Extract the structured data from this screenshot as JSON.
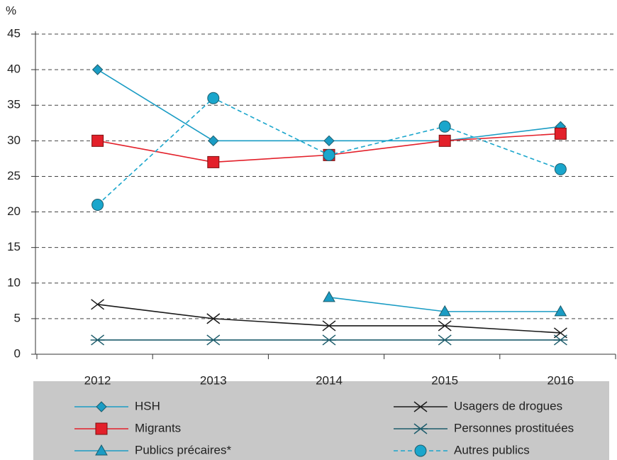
{
  "chart_data": {
    "type": "line",
    "y_label": "%",
    "categories": [
      "2012",
      "2013",
      "2014",
      "2015",
      "2016"
    ],
    "ylim": [
      0,
      45
    ],
    "yticks": [
      0,
      5,
      10,
      15,
      20,
      25,
      30,
      35,
      40,
      45
    ],
    "grid": true,
    "series": [
      {
        "name": "HSH",
        "color": "#1a9cc4",
        "marker": "diamond",
        "dashed": false,
        "values": [
          40,
          30,
          30,
          30,
          32
        ]
      },
      {
        "name": "Usagers de drogues",
        "color": "#1a1a1a",
        "marker": "x",
        "dashed": false,
        "values": [
          7,
          5,
          4,
          4,
          3
        ]
      },
      {
        "name": "Migrants",
        "color": "#e3202a",
        "marker": "square",
        "dashed": false,
        "values": [
          30,
          27,
          28,
          30,
          31
        ]
      },
      {
        "name": "Personnes prostituées",
        "color": "#1d5c6b",
        "marker": "asterisk",
        "dashed": false,
        "values": [
          2,
          2,
          2,
          2,
          2
        ]
      },
      {
        "name": "Publics précaires*",
        "color": "#1a9cc4",
        "marker": "triangle",
        "dashed": false,
        "values": [
          null,
          null,
          8,
          6,
          6
        ]
      },
      {
        "name": "Autres publics",
        "color": "#1aa6cc",
        "marker": "circle",
        "dashed": true,
        "values": [
          21,
          36,
          28,
          32,
          26
        ]
      }
    ]
  }
}
